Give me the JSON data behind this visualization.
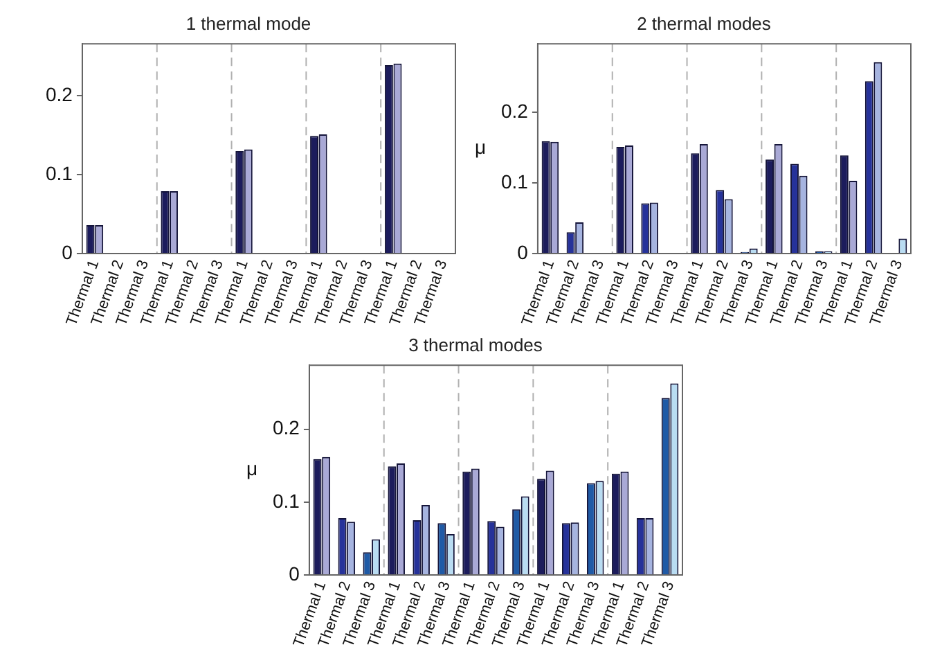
{
  "chart_data": [
    {
      "type": "bar",
      "title": "1 thermal mode",
      "categories": [
        "Thermal 1",
        "Thermal 2",
        "Thermal 3",
        "Thermal 1",
        "Thermal 2",
        "Thermal 3",
        "Thermal 1",
        "Thermal 2",
        "Thermal 3",
        "Thermal 1",
        "Thermal 2",
        "Thermal 3",
        "Thermal 1",
        "Thermal 2",
        "Thermal 3"
      ],
      "series": [
        {
          "colors": [
            "#1c1c5c",
            "#26329a",
            "#1f5aa6",
            "#1c1c5c",
            "#26329a",
            "#1f5aa6",
            "#1c1c5c",
            "#26329a",
            "#1f5aa6",
            "#1c1c5c",
            "#26329a",
            "#1f5aa6",
            "#1c1c5c",
            "#26329a",
            "#1f5aa6"
          ],
          "values": [
            0.036,
            0,
            0,
            0.079,
            0,
            0,
            0.13,
            0,
            0,
            0.149,
            0,
            0,
            0.239,
            0,
            0
          ]
        },
        {
          "colors": [
            "#a9a9d6",
            "#a6b4e0",
            "#b9dcf2",
            "#a9a9d6",
            "#a6b4e0",
            "#b9dcf2",
            "#a9a9d6",
            "#a6b4e0",
            "#b9dcf2",
            "#a9a9d6",
            "#a6b4e0",
            "#b9dcf2",
            "#a9a9d6",
            "#a6b4e0",
            "#b9dcf2"
          ],
          "values": [
            0.036,
            0,
            0,
            0.079,
            0,
            0,
            0.132,
            0,
            0,
            0.151,
            0,
            0,
            0.241,
            0,
            0
          ]
        }
      ],
      "ylim": [
        0,
        0.266
      ],
      "yticks": [
        0,
        0.1,
        0.2
      ],
      "grid": false,
      "legend": false
    },
    {
      "type": "bar",
      "title": "2 thermal modes",
      "ylabel": "μ",
      "categories": [
        "Thermal 1",
        "Thermal 2",
        "Thermal 3",
        "Thermal 1",
        "Thermal 2",
        "Thermal 3",
        "Thermal 1",
        "Thermal 2",
        "Thermal 3",
        "Thermal 1",
        "Thermal 2",
        "Thermal 3",
        "Thermal 1",
        "Thermal 2",
        "Thermal 3"
      ],
      "series": [
        {
          "colors": [
            "#1c1c5c",
            "#26329a",
            "#1f5aa6",
            "#1c1c5c",
            "#26329a",
            "#1f5aa6",
            "#1c1c5c",
            "#26329a",
            "#1f5aa6",
            "#1c1c5c",
            "#26329a",
            "#1f5aa6",
            "#1c1c5c",
            "#26329a",
            "#1f5aa6"
          ],
          "values": [
            0.159,
            0.03,
            0,
            0.151,
            0.071,
            0,
            0.142,
            0.09,
            0.002,
            0.133,
            0.127,
            0.003,
            0.139,
            0.244,
            0
          ]
        },
        {
          "colors": [
            "#a9a9d6",
            "#a6b4e0",
            "#b9dcf2",
            "#a9a9d6",
            "#a6b4e0",
            "#b9dcf2",
            "#a9a9d6",
            "#a6b4e0",
            "#b9dcf2",
            "#a9a9d6",
            "#a6b4e0",
            "#b9dcf2",
            "#a9a9d6",
            "#a6b4e0",
            "#b9dcf2"
          ],
          "values": [
            0.158,
            0.044,
            0,
            0.153,
            0.072,
            0,
            0.155,
            0.077,
            0.007,
            0.155,
            0.11,
            0.003,
            0.103,
            0.271,
            0.021
          ]
        }
      ],
      "ylim": [
        0,
        0.297
      ],
      "yticks": [
        0,
        0.1,
        0.2
      ],
      "grid": false,
      "legend": false
    },
    {
      "type": "bar",
      "title": "3 thermal modes",
      "ylabel": "μ",
      "categories": [
        "Thermal 1",
        "Thermal 2",
        "Thermal 3",
        "Thermal 1",
        "Thermal 2",
        "Thermal 3",
        "Thermal 1",
        "Thermal 2",
        "Thermal 3",
        "Thermal 1",
        "Thermal 2",
        "Thermal 3",
        "Thermal 1",
        "Thermal 2",
        "Thermal 3"
      ],
      "series": [
        {
          "colors": [
            "#1c1c5c",
            "#26329a",
            "#1f5aa6",
            "#1c1c5c",
            "#26329a",
            "#1f5aa6",
            "#1c1c5c",
            "#26329a",
            "#1f5aa6",
            "#1c1c5c",
            "#26329a",
            "#1f5aa6",
            "#1c1c5c",
            "#26329a",
            "#1f5aa6"
          ],
          "values": [
            0.159,
            0.078,
            0.031,
            0.149,
            0.075,
            0.071,
            0.142,
            0.074,
            0.09,
            0.132,
            0.071,
            0.126,
            0.139,
            0.078,
            0.243
          ]
        },
        {
          "colors": [
            "#a9a9d6",
            "#a6b4e0",
            "#b9dcf2",
            "#a9a9d6",
            "#a6b4e0",
            "#b9dcf2",
            "#a9a9d6",
            "#a6b4e0",
            "#b9dcf2",
            "#a9a9d6",
            "#a6b4e0",
            "#b9dcf2",
            "#a9a9d6",
            "#a6b4e0",
            "#b9dcf2"
          ],
          "values": [
            0.162,
            0.073,
            0.049,
            0.153,
            0.096,
            0.056,
            0.146,
            0.066,
            0.108,
            0.143,
            0.072,
            0.129,
            0.142,
            0.078,
            0.263
          ]
        }
      ],
      "ylim": [
        0,
        0.288
      ],
      "yticks": [
        0,
        0.1,
        0.2
      ],
      "grid": false,
      "legend": false
    }
  ]
}
